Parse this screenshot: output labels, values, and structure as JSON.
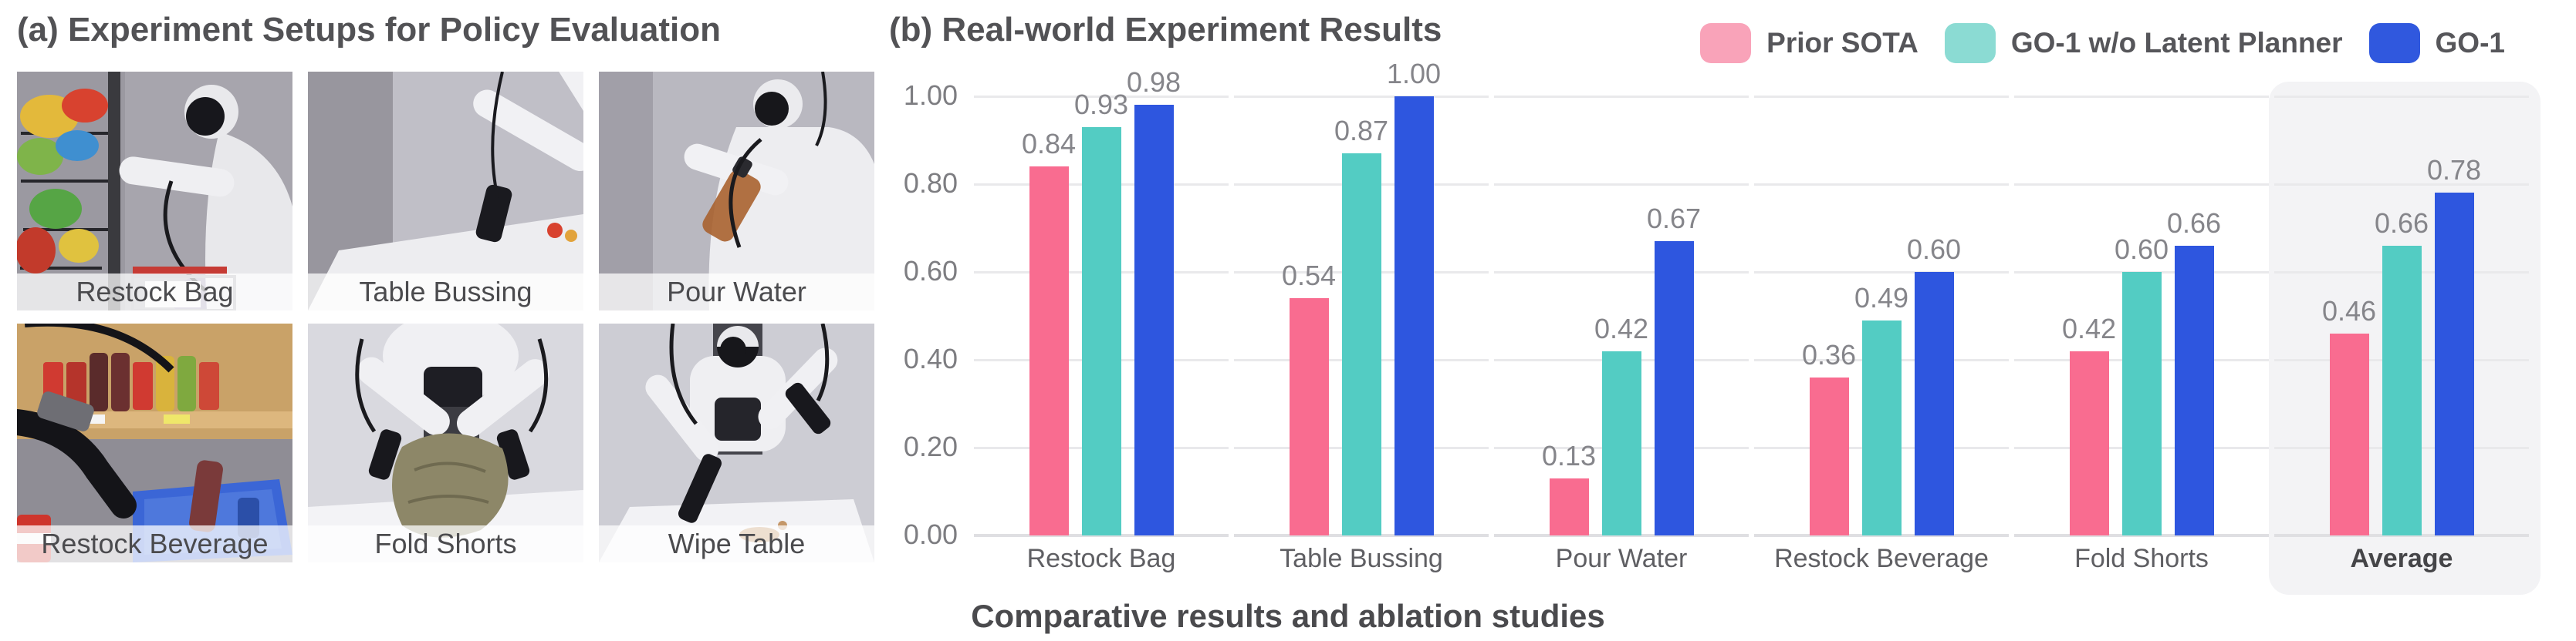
{
  "panel_a": {
    "title": "(a) Experiment Setups for Policy Evaluation",
    "photos": [
      {
        "label": "Restock Bag"
      },
      {
        "label": "Table Bussing"
      },
      {
        "label": "Pour Water"
      },
      {
        "label": "Restock Beverage"
      },
      {
        "label": "Fold Shorts"
      },
      {
        "label": "Wipe Table"
      }
    ]
  },
  "panel_b": {
    "title": "(b) Real-world Experiment Results"
  },
  "caption": "Comparative results and ablation studies",
  "chart_data": {
    "type": "bar",
    "categories": [
      "Restock Bag",
      "Table Bussing",
      "Pour Water",
      "Restock Beverage",
      "Fold Shorts",
      "Average"
    ],
    "series": [
      {
        "name": "Prior SOTA",
        "color": "#F96C90",
        "legend_color": "#F9A3B9",
        "values": [
          0.84,
          0.54,
          0.13,
          0.36,
          0.42,
          0.46
        ]
      },
      {
        "name": "GO-1 w/o Latent Planner",
        "color": "#53CCC3",
        "legend_color": "#8BDBD3",
        "values": [
          0.93,
          0.87,
          0.42,
          0.49,
          0.6,
          0.66
        ]
      },
      {
        "name": "GO-1",
        "color": "#2E56DF",
        "legend_color": "#3058DE",
        "values": [
          0.98,
          1.0,
          0.67,
          0.6,
          0.66,
          0.78
        ]
      }
    ],
    "yticks": [
      "0.00",
      "0.20",
      "0.40",
      "0.60",
      "0.80",
      "1.00"
    ],
    "ylim": [
      0,
      1.0
    ],
    "grid": true,
    "legend_position": "top-right",
    "highlight_category": "Average",
    "value_label_format": "2-decimals"
  }
}
